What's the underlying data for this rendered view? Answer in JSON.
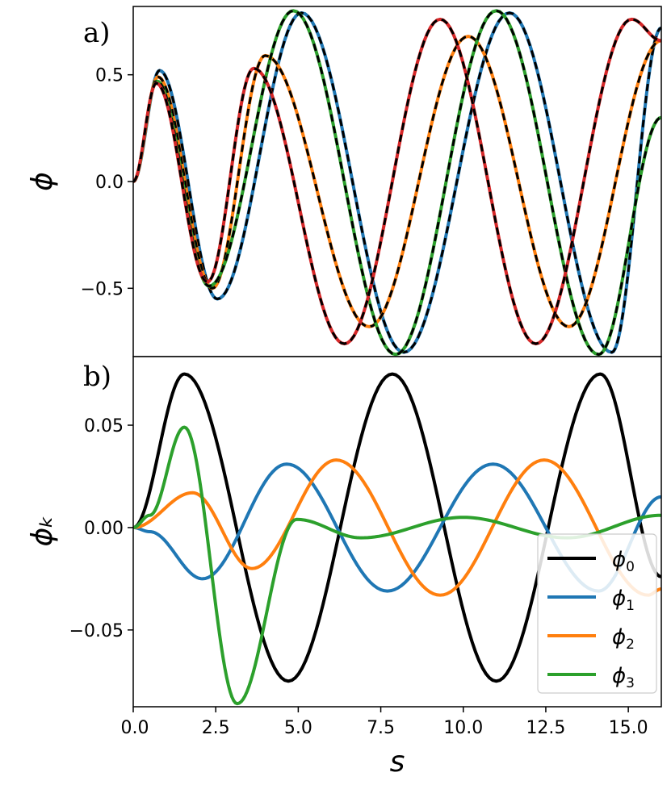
{
  "chart_data": [
    {
      "id": "a",
      "type": "line",
      "panel_label": "a)",
      "ylabel": "ϕ",
      "xlim": [
        0,
        16
      ],
      "ylim": [
        -0.82,
        0.82
      ],
      "yticks": [
        -0.5,
        0.0,
        0.5
      ],
      "ytick_labels": [
        "−0.5",
        "0.0",
        "0.5"
      ],
      "overlay": "black dashed curve over each series",
      "series": [
        {
          "color": "#1f77b4",
          "x": [
            0,
            0.8,
            2.55,
            5.1,
            8.2,
            11.4,
            14.5,
            16
          ],
          "y": [
            0,
            0.52,
            -0.55,
            0.79,
            -0.8,
            0.79,
            -0.8,
            0.72
          ]
        },
        {
          "color": "#ff7f0e",
          "x": [
            0,
            0.75,
            2.4,
            4.0,
            7.15,
            10.15,
            13.2,
            16
          ],
          "y": [
            0,
            0.49,
            -0.5,
            0.59,
            -0.68,
            0.68,
            -0.68,
            0.66
          ]
        },
        {
          "color": "#2ca02c",
          "x": [
            0,
            0.72,
            2.3,
            4.85,
            7.95,
            11.0,
            14.1,
            16
          ],
          "y": [
            0,
            0.47,
            -0.49,
            0.8,
            -0.81,
            0.8,
            -0.81,
            0.3
          ]
        },
        {
          "color": "#d62728",
          "x": [
            0,
            0.7,
            2.25,
            3.65,
            6.4,
            9.3,
            12.2,
            15.1,
            16
          ],
          "y": [
            0,
            0.46,
            -0.47,
            0.53,
            -0.76,
            0.76,
            -0.76,
            0.76,
            0.66
          ]
        }
      ]
    },
    {
      "id": "b",
      "type": "line",
      "panel_label": "b)",
      "ylabel": "ϕₖ",
      "xlabel": "s",
      "xlim": [
        0,
        16
      ],
      "ylim": [
        -0.0875,
        0.0835
      ],
      "xticks": [
        0,
        2.5,
        5,
        7.5,
        10,
        12.5,
        15
      ],
      "xtick_labels": [
        "0.0",
        "2.5",
        "5.0",
        "7.5",
        "10.0",
        "12.5",
        "15.0"
      ],
      "yticks": [
        -0.05,
        0.0,
        0.05
      ],
      "ytick_labels": [
        "−0.05",
        "0.00",
        "0.05"
      ],
      "legend": {
        "placement": "bottom-right"
      },
      "series": [
        {
          "name": "ϕ",
          "sub": "0",
          "color": "#000000",
          "x": [
            0,
            1.55,
            4.7,
            7.85,
            11.0,
            14.15,
            16
          ],
          "y": [
            0,
            0.075,
            -0.075,
            0.075,
            -0.075,
            0.075,
            -0.024
          ]
        },
        {
          "name": "ϕ",
          "sub": "1",
          "color": "#1f77b4",
          "x": [
            0,
            0.5,
            2.1,
            4.65,
            7.7,
            10.9,
            14.1,
            16
          ],
          "y": [
            0,
            -0.002,
            -0.025,
            0.031,
            -0.031,
            0.031,
            -0.031,
            0.015
          ]
        },
        {
          "name": "ϕ",
          "sub": "2",
          "color": "#ff7f0e",
          "x": [
            0,
            1.8,
            3.6,
            6.15,
            9.3,
            12.45,
            15.6,
            16
          ],
          "y": [
            0,
            0.017,
            -0.02,
            0.033,
            -0.033,
            0.033,
            -0.033,
            -0.03
          ]
        },
        {
          "name": "ϕ",
          "sub": "3",
          "color": "#2ca02c",
          "x": [
            0,
            0.5,
            1.55,
            3.15,
            4.95,
            6.9,
            10.0,
            13.15,
            16
          ],
          "y": [
            0,
            0.006,
            0.049,
            -0.086,
            0.004,
            -0.005,
            0.005,
            -0.005,
            0.006
          ]
        }
      ]
    }
  ]
}
